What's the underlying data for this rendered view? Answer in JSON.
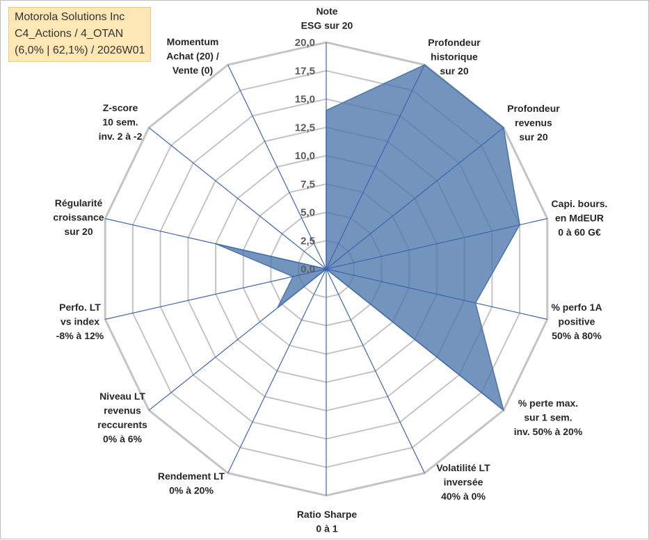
{
  "title_box": {
    "line1": "Motorola Solutions Inc",
    "line2": "C4_Actions / 4_OTAN",
    "line3": "(6,0% | 62,1%) / 2026W01"
  },
  "chart_data": {
    "type": "radar",
    "series_color": "#4a76aa",
    "grid_color": "#c4c4c4",
    "spoke_color": "#3c64b0",
    "range": [
      0,
      20
    ],
    "tick_labels": [
      "0,0",
      "2,5",
      "5,0",
      "7,5",
      "10,0",
      "12,5",
      "15,0",
      "17,5",
      "20,0"
    ],
    "axes": [
      {
        "lines": [
          "Note",
          "ESG sur 20"
        ],
        "value": 14.0
      },
      {
        "lines": [
          "Profondeur",
          "historique",
          "sur 20"
        ],
        "value": 20.0
      },
      {
        "lines": [
          "Profondeur",
          "revenus",
          "sur 20"
        ],
        "value": 20.0
      },
      {
        "lines": [
          "Capi. bours.",
          "en MdEUR",
          "0 à 60 G€"
        ],
        "value": 17.5
      },
      {
        "lines": [
          "% perfo 1A",
          "positive",
          "50% à 80%"
        ],
        "value": 13.5
      },
      {
        "lines": [
          "% perte max.",
          "sur 1 sem.",
          "inv. 50% à 20%"
        ],
        "value": 20.0
      },
      {
        "lines": [
          "Volatilité LT",
          "inversée",
          "40% à 0%"
        ],
        "value": 0.0
      },
      {
        "lines": [
          "Ratio Sharpe",
          "0 à 1"
        ],
        "value": 0.0
      },
      {
        "lines": [
          "Rendement LT",
          "0% à 20%"
        ],
        "value": 0.0
      },
      {
        "lines": [
          "Niveau LT",
          "revenus",
          "reccurents",
          "0% à 6%"
        ],
        "value": 5.5
      },
      {
        "lines": [
          "Perfo. LT",
          "vs index",
          "-8% à 12%"
        ],
        "value": 3.0
      },
      {
        "lines": [
          "Régularité",
          "croissance",
          "sur 20"
        ],
        "value": 10.0
      },
      {
        "lines": [
          "Z-score",
          "10 sem.",
          "inv. 2 à -2"
        ],
        "value": 0.0
      },
      {
        "lines": [
          "Momentum",
          "Achat (20) /",
          "Vente (0)"
        ],
        "value": 0.0
      }
    ]
  }
}
